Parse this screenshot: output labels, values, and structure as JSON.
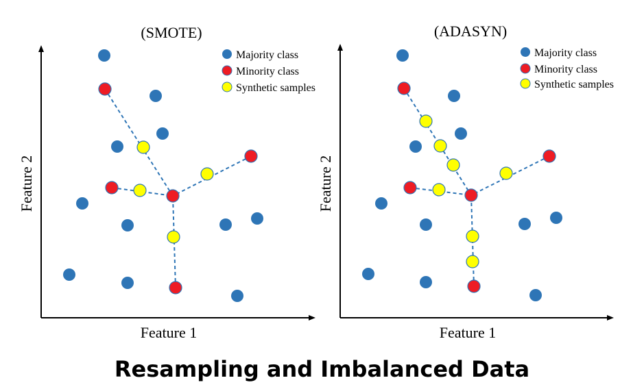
{
  "caption": "Resampling and Imbalanced Data",
  "colors": {
    "majority": "#2e75b6",
    "minority": "#ee1c24",
    "synthetic": "#ffff00",
    "edge": "#2e75b6",
    "synthetic_stroke": "#2e75b6",
    "axis": "#000000"
  },
  "panels": [
    {
      "id": "smote",
      "title": "(SMOTE)",
      "xlabel": "Feature 1",
      "ylabel": "Feature 2",
      "legend": [
        {
          "label": "Majority class",
          "kind": "majority"
        },
        {
          "label": "Minority class",
          "kind": "minority"
        },
        {
          "label": "Synthetic samples",
          "kind": "synthetic"
        }
      ]
    },
    {
      "id": "adasyn",
      "title": "(ADASYN)",
      "xlabel": "Feature 1",
      "ylabel": "Feature 2",
      "legend": [
        {
          "label": "Majority class",
          "kind": "majority"
        },
        {
          "label": "Minority class",
          "kind": "minority"
        },
        {
          "label": "Synthetic samples",
          "kind": "synthetic"
        }
      ]
    }
  ]
}
